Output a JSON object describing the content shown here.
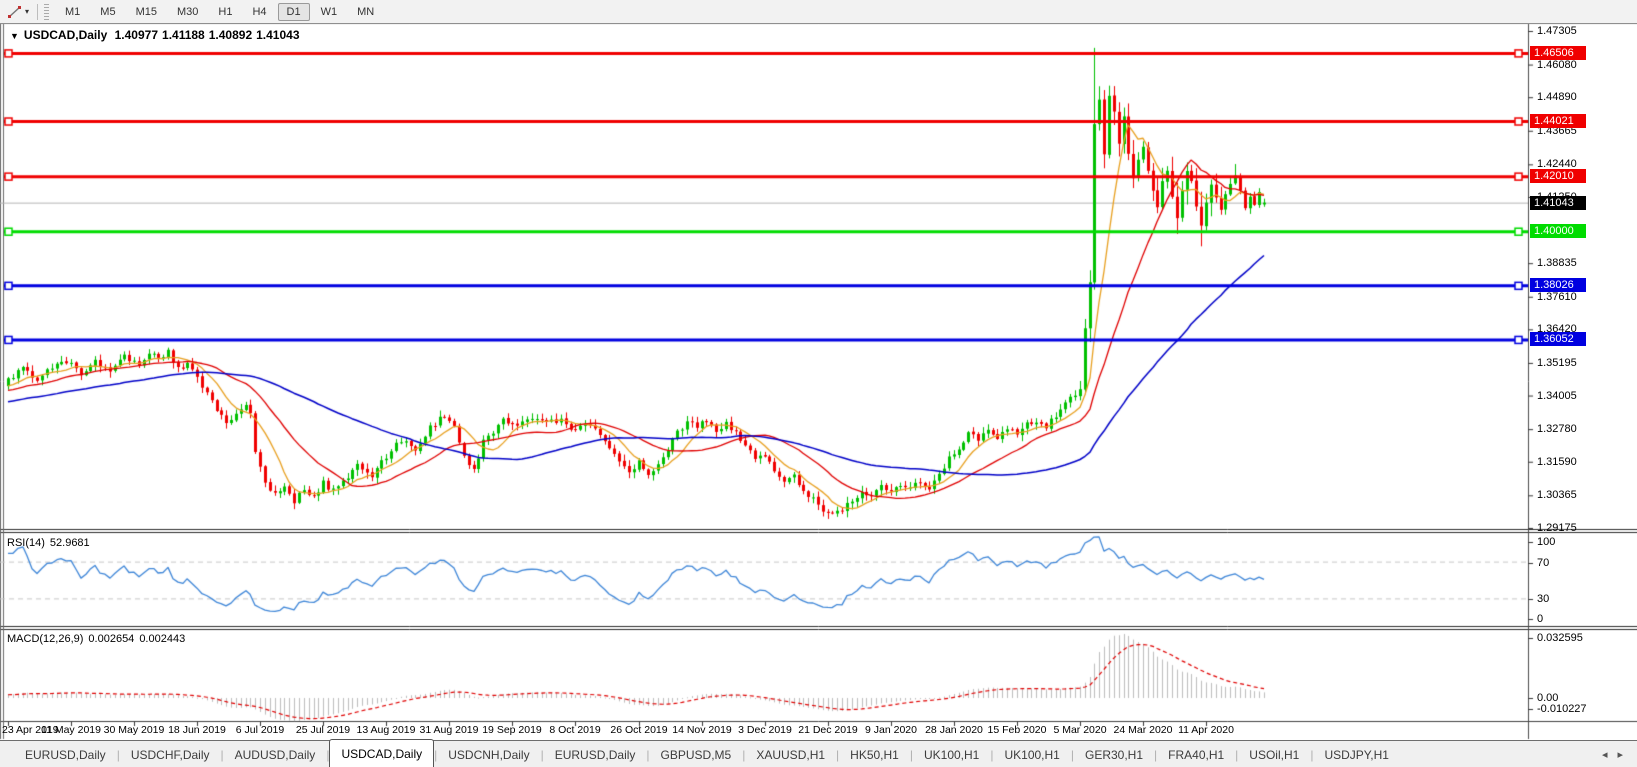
{
  "toolbar": {
    "line_tools_button": {
      "icon": "trendline-icon",
      "has_dropdown": true
    },
    "timeframes": [
      "M1",
      "M5",
      "M15",
      "M30",
      "H1",
      "H4",
      "D1",
      "W1",
      "MN"
    ],
    "active_timeframe": "D1"
  },
  "chart": {
    "title": "USDCAD,Daily",
    "ohlc": {
      "open": "1.40977",
      "high": "1.41188",
      "low": "1.40892",
      "close": "1.41043"
    }
  },
  "price_axis": {
    "ticks": [
      "1.47305",
      "1.46080",
      "1.44890",
      "1.43665",
      "1.42440",
      "1.41250",
      "1.38835",
      "1.37610",
      "1.36420",
      "1.35195",
      "1.34005",
      "1.32780",
      "1.31590",
      "1.30365",
      "1.29175"
    ],
    "current_price": "1.41043"
  },
  "levels": [
    {
      "label": "1.46506",
      "price": 1.46506,
      "color": "#F00000"
    },
    {
      "label": "1.44021",
      "price": 1.44021,
      "color": "#F00000"
    },
    {
      "label": "1.42010",
      "price": 1.4201,
      "color": "#F00000"
    },
    {
      "label": "1.40000",
      "price": 1.4,
      "color": "#00DC00"
    },
    {
      "label": "1.38026",
      "price": 1.38026,
      "color": "#0000E0"
    },
    {
      "label": "1.36052",
      "price": 1.36052,
      "color": "#0000E0"
    }
  ],
  "indicators": {
    "rsi": {
      "name": "RSI(14)",
      "value": "52.9681",
      "period": 14,
      "scale": [
        "100",
        "70",
        "30",
        "0"
      ],
      "levels": [
        70,
        30
      ],
      "line_color": "#3E86D8"
    },
    "macd": {
      "name": "MACD(12,26,9)",
      "value_main": "0.002654",
      "value_signal": "0.002443",
      "scale": [
        "0.032595",
        "0.00",
        "-0.010227"
      ],
      "hist_color": "#BDBDBD",
      "signal_color": "#E00000"
    }
  },
  "time_axis": {
    "labels": [
      "23 Apr 2019",
      "11 May 2019",
      "30 May 2019",
      "18 Jun 2019",
      "6 Jul 2019",
      "25 Jul 2019",
      "13 Aug 2019",
      "31 Aug 2019",
      "19 Sep 2019",
      "8 Oct 2019",
      "26 Oct 2019",
      "14 Nov 2019",
      "3 Dec 2019",
      "21 Dec 2019",
      "9 Jan 2020",
      "28 Jan 2020",
      "15 Feb 2020",
      "5 Mar 2020",
      "24 Mar 2020",
      "11 Apr 2020"
    ],
    "candles_per_label": 13
  },
  "tabs": {
    "items": [
      "EURUSD,Daily",
      "USDCHF,Daily",
      "AUDUSD,Daily",
      "USDCAD,Daily",
      "USDCNH,Daily",
      "EURUSD,Daily",
      "GBPUSD,M5",
      "XAUUSD,H1",
      "HK50,H1",
      "UK100,H1",
      "UK100,H1",
      "GER30,H1",
      "FRA40,H1",
      "USOil,H1",
      "USDJPY,H1"
    ],
    "active_index": 3,
    "scroll_left": "◂",
    "scroll_right": "▸"
  },
  "colors": {
    "bull": "#00C000",
    "bear": "#F00000",
    "current_price_line": "#B4B4B4",
    "current_price_badge": "#000000",
    "grid_dash": "#C8C8C8",
    "panel_border": "#2A2A2A",
    "axis_line": "#4A4A4A"
  },
  "chart_data": {
    "type": "candlestick",
    "symbol": "USDCAD",
    "timeframe": "Daily",
    "visible_range": {
      "first_label": "23 Apr 2019",
      "last_label": "11 Apr 2020"
    },
    "price_axis_top": 1.47305,
    "price_axis_bottom": 1.29175,
    "candle_count": 260,
    "last_candle": {
      "open": 1.40977,
      "high": 1.41188,
      "low": 1.40892,
      "close": 1.41043
    },
    "spike": {
      "index": 224,
      "high": 1.4669
    },
    "close_anchors": [
      [
        0,
        1.3455
      ],
      [
        3,
        1.35
      ],
      [
        6,
        1.3465
      ],
      [
        9,
        1.3495
      ],
      [
        12,
        1.3525
      ],
      [
        15,
        1.3485
      ],
      [
        18,
        1.352
      ],
      [
        21,
        1.3495
      ],
      [
        24,
        1.354
      ],
      [
        27,
        1.351
      ],
      [
        29,
        1.3565
      ],
      [
        31,
        1.354
      ],
      [
        33,
        1.3558
      ],
      [
        35,
        1.35
      ],
      [
        37,
        1.352
      ],
      [
        40,
        1.343
      ],
      [
        42,
        1.338
      ],
      [
        44,
        1.333
      ],
      [
        45,
        1.329
      ],
      [
        47,
        1.334
      ],
      [
        49,
        1.3365
      ],
      [
        50,
        1.333
      ],
      [
        51,
        1.319
      ],
      [
        53,
        1.309
      ],
      [
        55,
        1.3035
      ],
      [
        57,
        1.307
      ],
      [
        59,
        1.3015
      ],
      [
        61,
        1.306
      ],
      [
        63,
        1.303
      ],
      [
        65,
        1.308
      ],
      [
        67,
        1.305
      ],
      [
        69,
        1.3095
      ],
      [
        72,
        1.314
      ],
      [
        75,
        1.311
      ],
      [
        78,
        1.318
      ],
      [
        81,
        1.3235
      ],
      [
        84,
        1.321
      ],
      [
        87,
        1.328
      ],
      [
        90,
        1.333
      ],
      [
        92,
        1.329
      ],
      [
        94,
        1.318
      ],
      [
        96,
        1.3125
      ],
      [
        98,
        1.323
      ],
      [
        100,
        1.327
      ],
      [
        102,
        1.331
      ],
      [
        105,
        1.329
      ],
      [
        108,
        1.332
      ],
      [
        111,
        1.3295
      ],
      [
        114,
        1.332
      ],
      [
        117,
        1.327
      ],
      [
        120,
        1.33
      ],
      [
        123,
        1.3235
      ],
      [
        126,
        1.3165
      ],
      [
        128,
        1.3125
      ],
      [
        130,
        1.316
      ],
      [
        132,
        1.3105
      ],
      [
        134,
        1.3155
      ],
      [
        136,
        1.321
      ],
      [
        138,
        1.3265
      ],
      [
        140,
        1.331
      ],
      [
        142,
        1.329
      ],
      [
        144,
        1.331
      ],
      [
        146,
        1.327
      ],
      [
        148,
        1.33
      ],
      [
        150,
        1.3265
      ],
      [
        152,
        1.322
      ],
      [
        154,
        1.3165
      ],
      [
        156,
        1.3185
      ],
      [
        158,
        1.313
      ],
      [
        160,
        1.308
      ],
      [
        162,
        1.3105
      ],
      [
        164,
        1.305
      ],
      [
        166,
        1.302
      ],
      [
        168,
        1.2985
      ],
      [
        170,
        1.296
      ],
      [
        172,
        1.2985
      ],
      [
        174,
        1.301
      ],
      [
        176,
        1.305
      ],
      [
        178,
        1.303
      ],
      [
        180,
        1.3065
      ],
      [
        182,
        1.304
      ],
      [
        184,
        1.3075
      ],
      [
        186,
        1.3055
      ],
      [
        188,
        1.309
      ],
      [
        190,
        1.3065
      ],
      [
        192,
        1.312
      ],
      [
        194,
        1.317
      ],
      [
        196,
        1.3215
      ],
      [
        198,
        1.326
      ],
      [
        200,
        1.324
      ],
      [
        202,
        1.3265
      ],
      [
        204,
        1.3245
      ],
      [
        206,
        1.3285
      ],
      [
        208,
        1.3265
      ],
      [
        210,
        1.3295
      ],
      [
        212,
        1.331
      ],
      [
        214,
        1.329
      ],
      [
        216,
        1.333
      ],
      [
        218,
        1.337
      ],
      [
        220,
        1.3405
      ],
      [
        221,
        1.3425
      ],
      [
        222,
        1.3645
      ],
      [
        223,
        1.3815
      ],
      [
        224,
        1.439
      ],
      [
        225,
        1.448
      ],
      [
        226,
        1.428
      ],
      [
        227,
        1.4496
      ],
      [
        228,
        1.4435
      ],
      [
        229,
        1.432
      ],
      [
        230,
        1.442
      ],
      [
        231,
        1.4285
      ],
      [
        232,
        1.4195
      ],
      [
        233,
        1.4262
      ],
      [
        234,
        1.431
      ],
      [
        235,
        1.422
      ],
      [
        236,
        1.415
      ],
      [
        237,
        1.4085
      ],
      [
        238,
        1.418
      ],
      [
        239,
        1.422
      ],
      [
        240,
        1.4125
      ],
      [
        241,
        1.4045
      ],
      [
        242,
        1.415
      ],
      [
        243,
        1.422
      ],
      [
        244,
        1.4185
      ],
      [
        245,
        1.409
      ],
      [
        246,
        1.402
      ],
      [
        247,
        1.4105
      ],
      [
        248,
        1.417
      ],
      [
        249,
        1.412
      ],
      [
        250,
        1.408
      ],
      [
        251,
        1.4135
      ],
      [
        252,
        1.417
      ],
      [
        253,
        1.4205
      ],
      [
        254,
        1.415
      ],
      [
        255,
        1.4085
      ],
      [
        256,
        1.4125
      ],
      [
        257,
        1.4095
      ],
      [
        258,
        1.414
      ],
      [
        259,
        1.41043
      ]
    ],
    "wick_overrides": {
      "224": {
        "high": 1.4669
      },
      "241": {
        "low": 1.399
      },
      "246": {
        "low": 1.3945
      },
      "253": {
        "high": 1.4245
      }
    },
    "moving_averages": [
      {
        "type": "sma",
        "period": 8,
        "color": "#E8A020"
      },
      {
        "type": "sma",
        "period": 21,
        "color": "#E00000"
      },
      {
        "type": "sma",
        "period": 55,
        "color": "#0000C8"
      }
    ],
    "horizontal_lines": [
      1.46506,
      1.44021,
      1.4201,
      1.4,
      1.38026,
      1.36052
    ],
    "rsi_period": 14,
    "macd_params": [
      12,
      26,
      9
    ]
  }
}
